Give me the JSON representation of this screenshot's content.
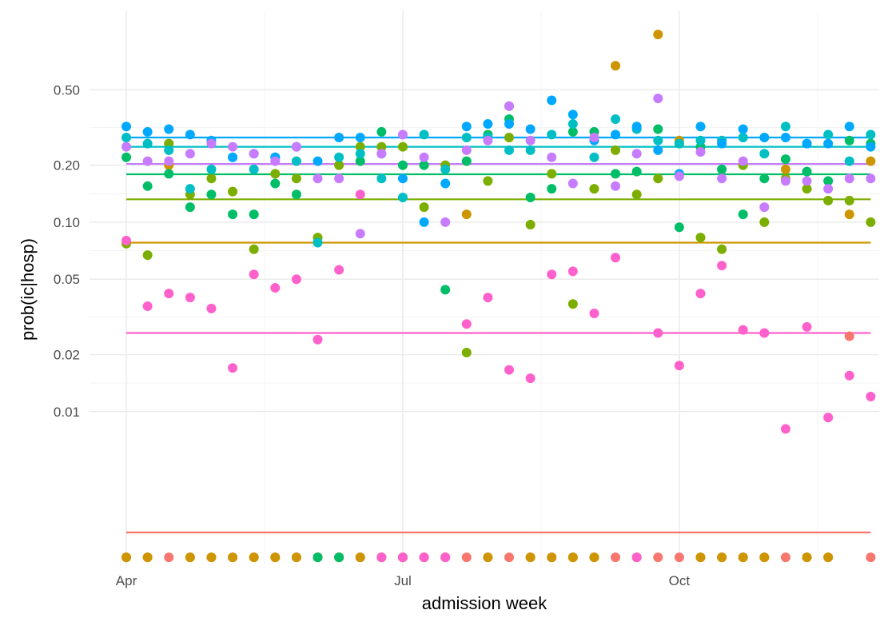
{
  "chart_data": {
    "type": "scatter",
    "x_label": "admission week",
    "y_label": "prob(ic|hosp)",
    "x": [
      0,
      1,
      2,
      3,
      4,
      5,
      6,
      7,
      8,
      9,
      10,
      11,
      12,
      13,
      14,
      15,
      16,
      17,
      18,
      19,
      20,
      21,
      22,
      23,
      24,
      25,
      26,
      27,
      28,
      29,
      30,
      31,
      32,
      33,
      34,
      35
    ],
    "xlim": [
      -1.73,
      35.4
    ],
    "xticks": [
      {
        "value": 0,
        "label": "Apr"
      },
      {
        "value": 13,
        "label": "Jul"
      },
      {
        "value": 26,
        "label": "Oct"
      }
    ],
    "ylim": [
      0.0015,
      1.3
    ],
    "log_y": true,
    "grid": true,
    "yticks": [
      {
        "value": 0.01,
        "label": "0.01"
      },
      {
        "value": 0.02,
        "label": "0.02"
      },
      {
        "value": 0.05,
        "label": "0.05"
      },
      {
        "value": 0.1,
        "label": "0.10"
      },
      {
        "value": 0.2,
        "label": "0.20"
      },
      {
        "value": 0.5,
        "label": "0.50"
      }
    ],
    "series": [
      {
        "color": "#F8766D",
        "mean": 0.0023,
        "values": [
          0.0017,
          0.0017,
          0.0017,
          0.0017,
          0.0017,
          0.0017,
          0.0017,
          0.0017,
          0.0017,
          0.0017,
          0.0017,
          0.0017,
          0.0017,
          0.0017,
          0.0017,
          0.0017,
          0.0017,
          0.0017,
          0.0017,
          0.0017,
          0.0017,
          0.0017,
          0.0017,
          0.0017,
          0.0017,
          0.0017,
          0.0017,
          0.0017,
          0.0017,
          0.0017,
          0.0017,
          0.0017,
          0.0017,
          0.0017,
          0.025,
          0.0017
        ]
      },
      {
        "color": "#CD9600",
        "mean": 0.078,
        "values": [
          0.0017,
          0.0017,
          0.2,
          0.0017,
          0.0017,
          0.0017,
          0.0017,
          0.0017,
          0.0017,
          0.0017,
          0.0017,
          0.0017,
          0.0017,
          0.0017,
          0.0017,
          0.0017,
          0.11,
          0.0017,
          0.41,
          0.0017,
          0.0017,
          0.0017,
          0.0017,
          0.67,
          0.0017,
          0.98,
          0.27,
          0.0017,
          0.0017,
          0.0017,
          0.0017,
          0.19,
          0.0017,
          0.0017,
          0.11,
          0.21
        ]
      },
      {
        "color": "#7CAE00",
        "mean": 0.132,
        "values": [
          0.077,
          0.067,
          0.26,
          0.14,
          0.17,
          0.145,
          0.072,
          0.18,
          0.17,
          0.083,
          0.2,
          0.25,
          0.25,
          0.25,
          0.12,
          0.2,
          0.0205,
          0.165,
          0.28,
          0.097,
          0.18,
          0.037,
          0.15,
          0.24,
          0.14,
          0.17,
          0.26,
          0.083,
          0.072,
          0.2,
          0.1,
          0.17,
          0.15,
          0.13,
          0.13,
          0.1
        ]
      },
      {
        "color": "#00BE67",
        "mean": 0.179,
        "values": [
          0.22,
          0.155,
          0.18,
          0.12,
          0.14,
          0.11,
          0.11,
          0.16,
          0.14,
          0.0017,
          0.0017,
          0.21,
          0.3,
          0.2,
          0.2,
          0.044,
          0.21,
          0.29,
          0.35,
          0.135,
          0.15,
          0.3,
          0.3,
          0.18,
          0.185,
          0.31,
          0.094,
          0.25,
          0.19,
          0.11,
          0.17,
          0.215,
          0.185,
          0.165,
          0.27,
          0.26
        ]
      },
      {
        "color": "#00BFC4",
        "mean": 0.25,
        "values": [
          0.28,
          0.26,
          0.24,
          0.15,
          0.19,
          0.22,
          0.19,
          0.22,
          0.21,
          0.078,
          0.22,
          0.23,
          0.17,
          0.135,
          0.29,
          0.19,
          0.28,
          0.28,
          0.24,
          0.24,
          0.29,
          0.33,
          0.22,
          0.35,
          0.31,
          0.27,
          0.26,
          0.27,
          0.27,
          0.28,
          0.23,
          0.32,
          0.26,
          0.29,
          0.21,
          0.29
        ]
      },
      {
        "color": "#00A9FF",
        "mean": 0.28,
        "values": [
          0.32,
          0.3,
          0.31,
          0.29,
          0.27,
          0.22,
          0.23,
          0.22,
          0.25,
          0.21,
          0.28,
          0.28,
          0.23,
          0.17,
          0.1,
          0.16,
          0.32,
          0.33,
          0.33,
          0.31,
          0.44,
          0.37,
          0.27,
          0.29,
          0.32,
          0.24,
          0.18,
          0.32,
          0.26,
          0.31,
          0.28,
          0.28,
          0.26,
          0.26,
          0.32,
          0.25
        ]
      },
      {
        "color": "#C77CFF",
        "mean": 0.203,
        "values": [
          0.25,
          0.21,
          0.21,
          0.23,
          0.26,
          0.25,
          0.23,
          0.21,
          0.25,
          0.17,
          0.17,
          0.087,
          0.23,
          0.29,
          0.22,
          0.1,
          0.24,
          0.27,
          0.41,
          0.27,
          0.22,
          0.16,
          0.28,
          0.155,
          0.23,
          0.45,
          0.175,
          0.235,
          0.17,
          0.21,
          0.12,
          0.165,
          0.165,
          0.15,
          0.17,
          0.17
        ]
      },
      {
        "color": "#FF61CC",
        "mean": 0.026,
        "values": [
          0.08,
          0.036,
          0.042,
          0.04,
          0.035,
          0.017,
          0.053,
          0.045,
          0.05,
          0.024,
          0.056,
          0.14,
          0.0017,
          0.0017,
          0.0017,
          0.0017,
          0.029,
          0.04,
          0.0166,
          0.015,
          0.053,
          0.055,
          0.033,
          0.065,
          0.0017,
          0.026,
          0.0175,
          0.042,
          0.059,
          0.027,
          0.026,
          0.0081,
          0.028,
          0.0093,
          0.0155,
          0.012
        ]
      }
    ]
  }
}
